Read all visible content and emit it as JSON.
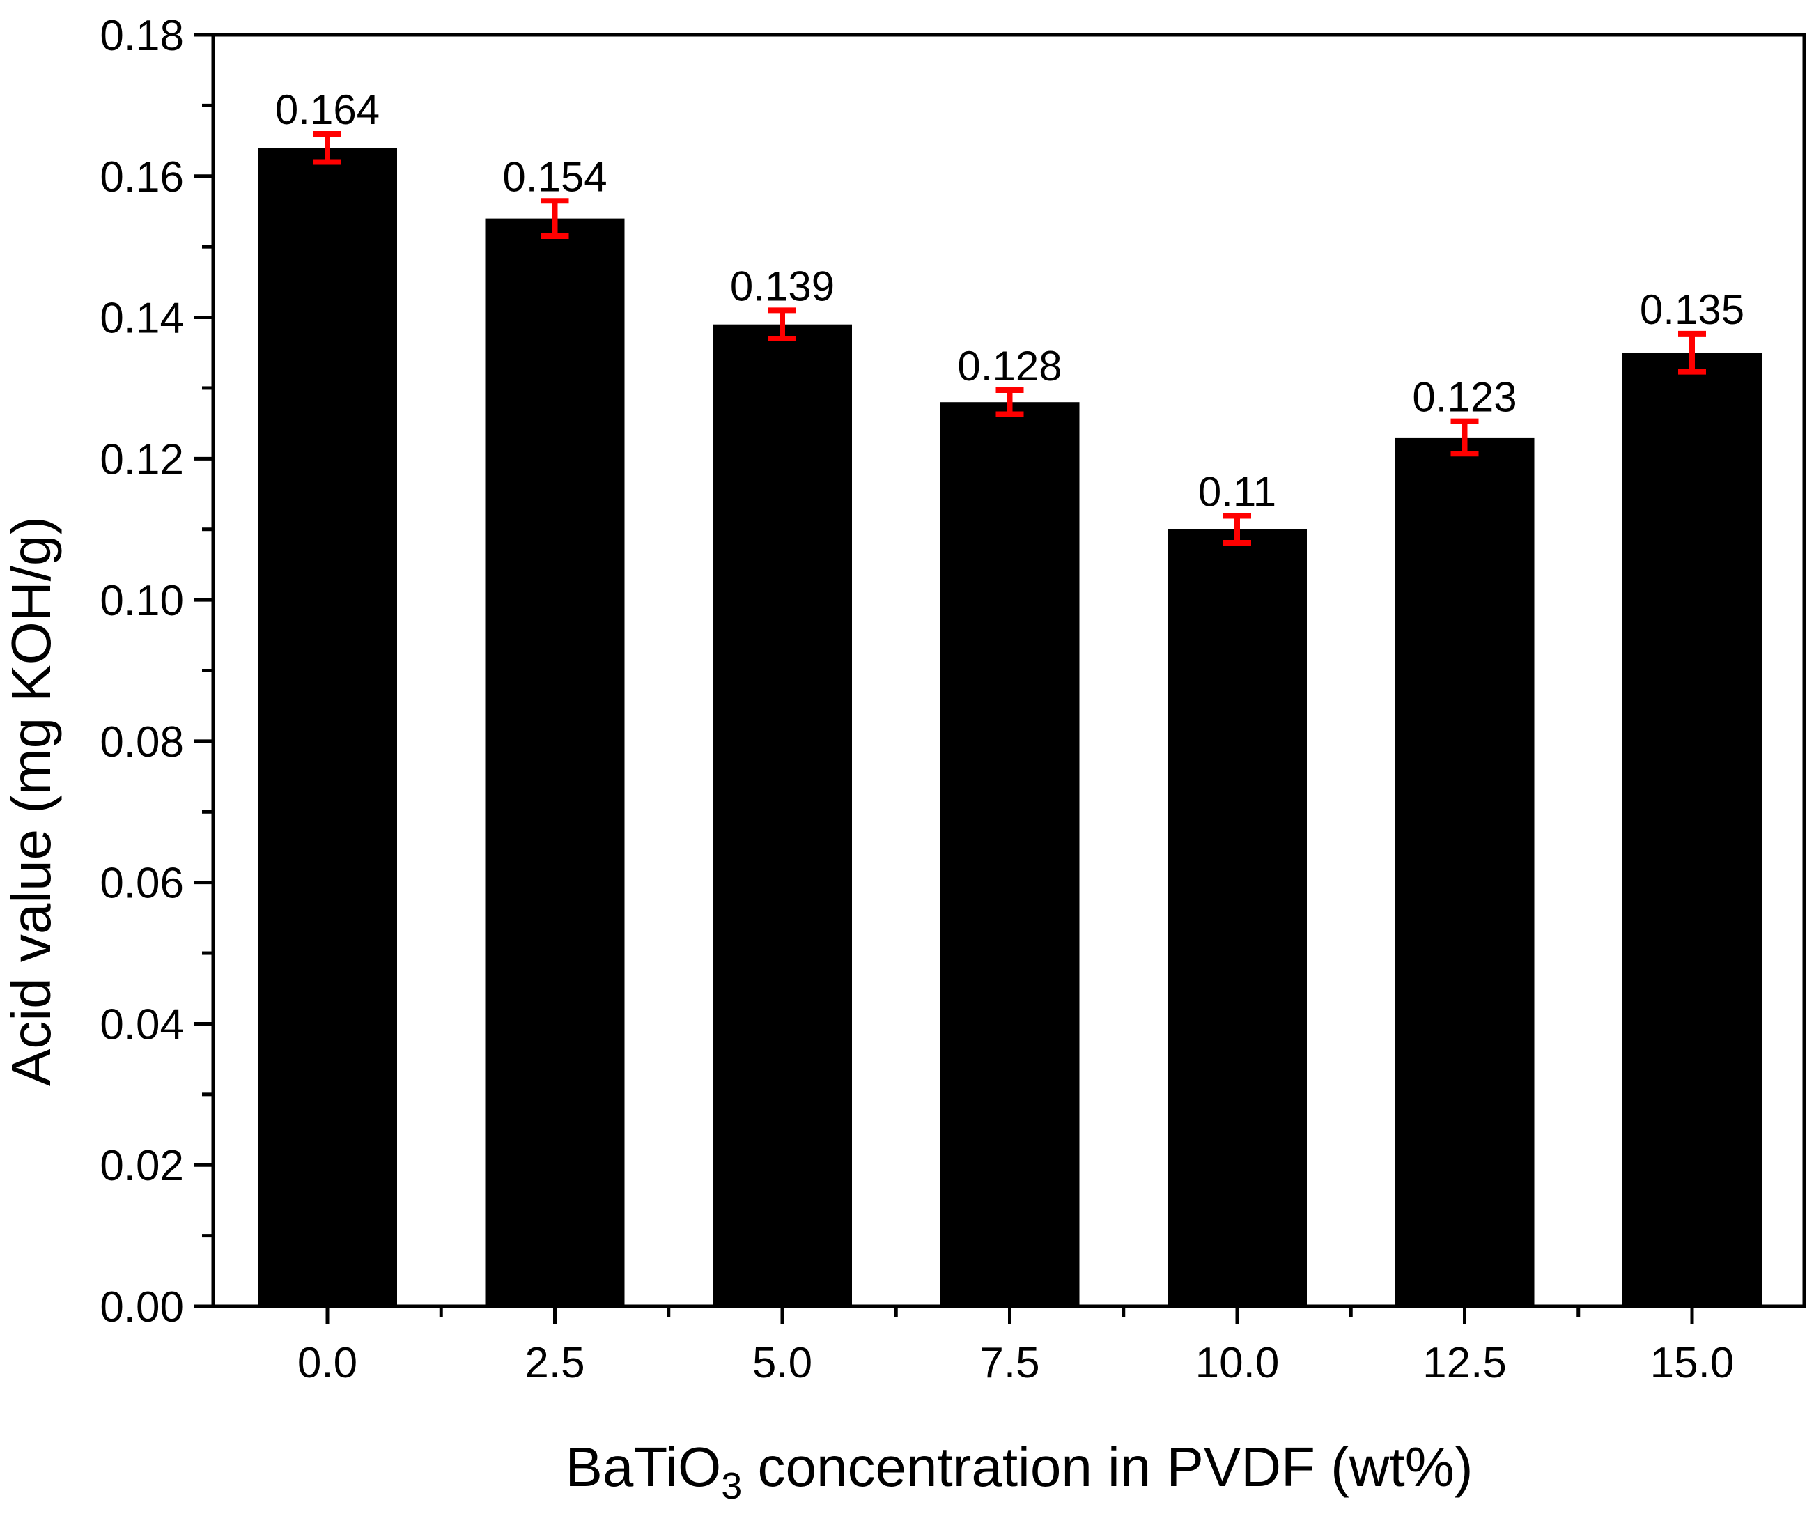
{
  "chart_data": {
    "type": "bar",
    "categories": [
      "0.0",
      "2.5",
      "5.0",
      "7.5",
      "10.0",
      "12.5",
      "15.0"
    ],
    "values": [
      0.164,
      0.154,
      0.139,
      0.128,
      0.11,
      0.123,
      0.135
    ],
    "errors": [
      0.002,
      0.0025,
      0.002,
      0.0017,
      0.0019,
      0.0023,
      0.0027
    ],
    "data_labels": [
      "0.164",
      "0.154",
      "0.139",
      "0.128",
      "0.11",
      "0.123",
      "0.135"
    ],
    "ylabel": "Acid value (mg KOH/g)",
    "xlabel": {
      "prefix": "BaTiO",
      "subscript": "3",
      "suffix": " concentration in PVDF (wt%)"
    },
    "ylim": [
      0,
      0.18
    ],
    "yticks": [
      "0.00",
      "0.02",
      "0.04",
      "0.06",
      "0.08",
      "0.10",
      "0.12",
      "0.14",
      "0.16",
      "0.18"
    ],
    "grid": false,
    "legend": "none",
    "colors": {
      "bar": "#000000",
      "error_bar": "#ff0000",
      "axis": "#000000"
    }
  }
}
